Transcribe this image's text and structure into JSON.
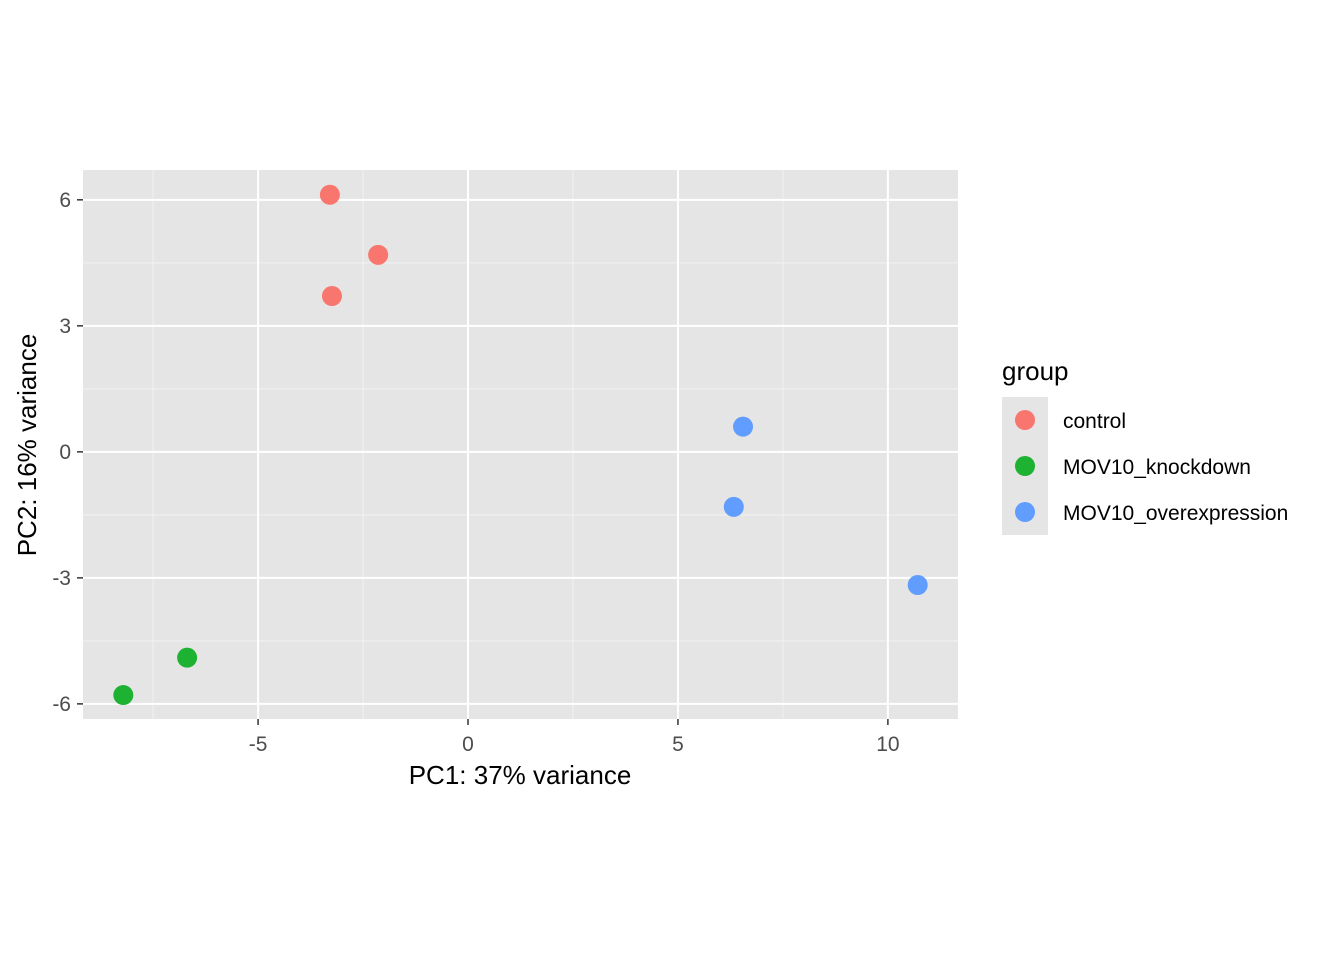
{
  "chart_data": {
    "type": "scatter",
    "xlabel": "PC1: 37% variance",
    "ylabel": "PC2: 16% variance",
    "xlim": [
      -9.17,
      11.67
    ],
    "ylim": [
      -6.36,
      6.71
    ],
    "x_ticks": [
      -5,
      0,
      5,
      10
    ],
    "y_ticks": [
      -6,
      -3,
      0,
      3,
      6
    ],
    "x_tick_labels": [
      "-5",
      "0",
      "5",
      "10"
    ],
    "y_tick_labels": [
      "-6",
      "-3",
      "0",
      "3",
      "6"
    ],
    "grid": true,
    "legend": {
      "title": "group",
      "position": "right"
    },
    "series": [
      {
        "name": "control",
        "color": "#F8766D",
        "points": [
          {
            "x": -3.29,
            "y": 6.12
          },
          {
            "x": -2.14,
            "y": 4.69
          },
          {
            "x": -3.24,
            "y": 3.71
          }
        ]
      },
      {
        "name": "MOV10_knockdown",
        "color": "#1DB232",
        "points": [
          {
            "x": -6.69,
            "y": -4.9
          },
          {
            "x": -8.21,
            "y": -5.79
          }
        ]
      },
      {
        "name": "MOV10_overexpression",
        "color": "#619CFF",
        "points": [
          {
            "x": 6.55,
            "y": 0.6
          },
          {
            "x": 6.33,
            "y": -1.31
          },
          {
            "x": 10.71,
            "y": -3.17
          }
        ]
      }
    ]
  }
}
